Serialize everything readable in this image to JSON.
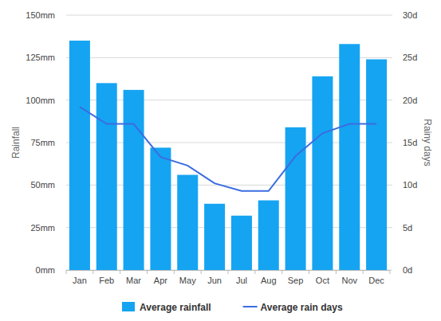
{
  "chart_data": {
    "type": "bar",
    "categories": [
      "Jan",
      "Feb",
      "Mar",
      "Apr",
      "May",
      "Jun",
      "Jul",
      "Aug",
      "Sep",
      "Oct",
      "Nov",
      "Dec"
    ],
    "series": [
      {
        "name": "Average rainfall",
        "type": "bar",
        "color": "#15a4f2",
        "values": [
          135,
          110,
          106,
          72,
          56,
          39,
          32,
          41,
          84,
          114,
          133,
          124
        ]
      },
      {
        "name": "Average rain days",
        "type": "line",
        "color": "#3b6de0",
        "axis": "y2",
        "values": [
          19.2,
          17.2,
          17.2,
          13.3,
          12.3,
          10.2,
          9.3,
          9.3,
          13.4,
          16.1,
          17.2,
          17.2
        ]
      }
    ],
    "y_label": "Rainfall",
    "y2_label": "Rainy days",
    "ylim": [
      0,
      150
    ],
    "yticks": [
      {
        "value": 0,
        "label": "0mm"
      },
      {
        "value": 25,
        "label": "25mm"
      },
      {
        "value": 50,
        "label": "50mm"
      },
      {
        "value": 75,
        "label": "75mm"
      },
      {
        "value": 100,
        "label": "100mm"
      },
      {
        "value": 125,
        "label": "125mm"
      },
      {
        "value": 150,
        "label": "150mm"
      }
    ],
    "y2lim": [
      0,
      30
    ],
    "y2ticks": [
      {
        "value": 0,
        "label": "0d"
      },
      {
        "value": 5,
        "label": "5d"
      },
      {
        "value": 10,
        "label": "10d"
      },
      {
        "value": 15,
        "label": "15d"
      },
      {
        "value": 20,
        "label": "20d"
      },
      {
        "value": 25,
        "label": "25d"
      },
      {
        "value": 30,
        "label": "30d"
      }
    ],
    "grid": true,
    "legend": "bottom"
  }
}
